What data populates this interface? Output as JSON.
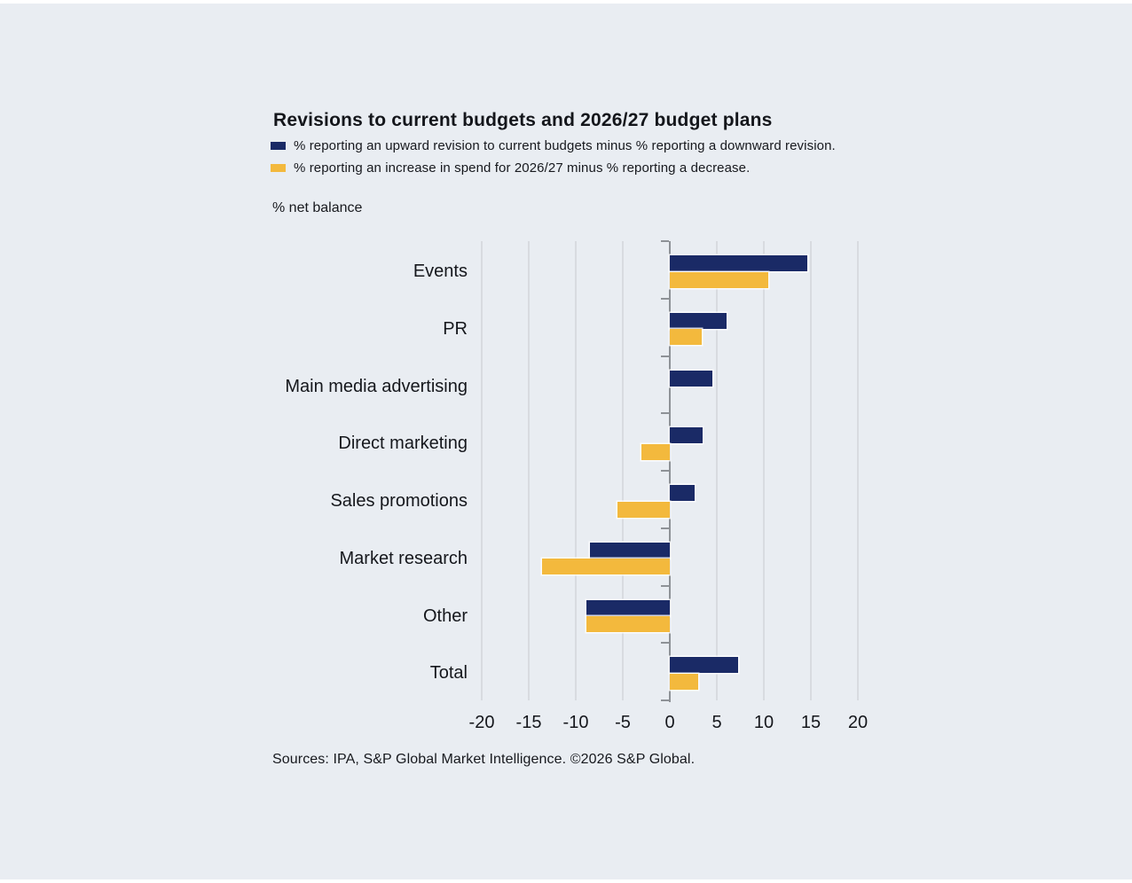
{
  "page": {
    "background": "#e9edf2",
    "source": "Sources: IPA, S&P Global Market Intelligence. ©2026 S&P Global."
  },
  "colors": {
    "navy": "#1a2a66",
    "yellow": "#f3b93d",
    "grid": "#d8dbe0",
    "axis": "#8e9297",
    "text": "#15171c"
  },
  "chart_data": {
    "type": "bar",
    "orientation": "horizontal",
    "title": "Revisions to current budgets and 2026/27 budget plans",
    "unit_label": "% net balance",
    "categories": [
      "Events",
      "PR",
      "Main media advertising",
      "Direct marketing",
      "Sales promotions",
      "Market research",
      "Other",
      "Total"
    ],
    "series": [
      {
        "name": "% reporting an upward revision to current budgets minus % reporting a downward revision.",
        "key": "current",
        "color": "#1a2a66",
        "values": [
          14.6,
          6.0,
          4.5,
          3.5,
          2.6,
          -8.5,
          -8.9,
          7.3
        ]
      },
      {
        "name": "% reporting an increase in spend for 2026/27 minus % reporting a decrease.",
        "key": "plan",
        "color": "#f3b93d",
        "values": [
          10.5,
          3.4,
          0,
          -3.0,
          -5.6,
          -13.6,
          -8.9,
          3.0
        ]
      }
    ],
    "xlim": [
      -20,
      20
    ],
    "xticks": [
      -20,
      -15,
      -10,
      -5,
      0,
      5,
      10,
      15,
      20
    ],
    "grid": "vertical",
    "legend_position": "top-left"
  }
}
